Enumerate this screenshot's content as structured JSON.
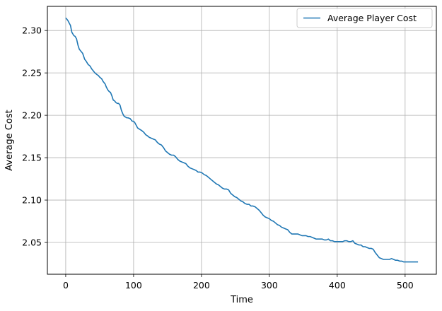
{
  "chart_data": {
    "type": "line",
    "title": "",
    "xlabel": "Time",
    "ylabel": "Average Cost",
    "xlim": [
      -27,
      546
    ],
    "ylim": [
      2.0125,
      2.3285
    ],
    "xticks": [
      0,
      100,
      200,
      300,
      400,
      500
    ],
    "xtick_labels": [
      "0",
      "100",
      "200",
      "300",
      "400",
      "500"
    ],
    "yticks": [
      2.05,
      2.1,
      2.15,
      2.2,
      2.25,
      2.3
    ],
    "ytick_labels": [
      "2.05",
      "2.10",
      "2.15",
      "2.20",
      "2.25",
      "2.30"
    ],
    "grid": true,
    "legend": {
      "placement": "top-right"
    },
    "series": [
      {
        "name": "Average Player Cost",
        "color": "#1f77b4",
        "x": [
          0,
          3,
          5,
          7,
          9,
          12,
          14,
          16,
          18,
          20,
          22,
          25,
          28,
          30,
          33,
          36,
          38,
          40,
          43,
          46,
          48,
          50,
          53,
          55,
          58,
          60,
          62,
          64,
          66,
          68,
          70,
          72,
          74,
          76,
          78,
          80,
          82,
          84,
          86,
          88,
          90,
          92,
          95,
          98,
          100,
          102,
          104,
          106,
          108,
          110,
          112,
          115,
          118,
          120,
          123,
          126,
          129,
          132,
          135,
          138,
          141,
          144,
          147,
          150,
          153,
          156,
          159,
          162,
          165,
          168,
          171,
          174,
          177,
          180,
          183,
          186,
          189,
          192,
          195,
          198,
          201,
          204,
          207,
          210,
          213,
          216,
          219,
          222,
          225,
          228,
          231,
          234,
          237,
          240,
          243,
          246,
          249,
          252,
          255,
          258,
          261,
          264,
          267,
          270,
          273,
          276,
          279,
          282,
          285,
          288,
          291,
          294,
          297,
          300,
          303,
          306,
          309,
          312,
          315,
          318,
          321,
          324,
          327,
          330,
          333,
          336,
          339,
          342,
          345,
          348,
          351,
          354,
          357,
          360,
          363,
          366,
          369,
          372,
          375,
          378,
          381,
          384,
          387,
          390,
          393,
          396,
          399,
          402,
          405,
          408,
          411,
          414,
          417,
          420,
          423,
          426,
          429,
          432,
          435,
          438,
          441,
          444,
          447,
          450,
          453,
          456,
          459,
          462,
          465,
          468,
          471,
          474,
          477,
          480,
          483,
          486,
          489,
          492,
          495,
          498,
          501,
          504,
          507,
          510,
          513,
          516,
          519
        ],
        "y": [
          2.315,
          2.312,
          2.309,
          2.306,
          2.298,
          2.294,
          2.293,
          2.29,
          2.283,
          2.278,
          2.276,
          2.273,
          2.266,
          2.264,
          2.26,
          2.258,
          2.255,
          2.253,
          2.25,
          2.248,
          2.247,
          2.245,
          2.243,
          2.24,
          2.237,
          2.233,
          2.23,
          2.228,
          2.227,
          2.223,
          2.218,
          2.217,
          2.215,
          2.214,
          2.214,
          2.212,
          2.206,
          2.202,
          2.199,
          2.198,
          2.197,
          2.197,
          2.196,
          2.193,
          2.193,
          2.191,
          2.188,
          2.185,
          2.184,
          2.183,
          2.182,
          2.18,
          2.177,
          2.176,
          2.174,
          2.173,
          2.172,
          2.171,
          2.168,
          2.166,
          2.165,
          2.162,
          2.158,
          2.156,
          2.154,
          2.153,
          2.153,
          2.151,
          2.148,
          2.146,
          2.145,
          2.144,
          2.143,
          2.14,
          2.138,
          2.137,
          2.136,
          2.135,
          2.133,
          2.133,
          2.132,
          2.13,
          2.129,
          2.127,
          2.125,
          2.123,
          2.121,
          2.119,
          2.118,
          2.116,
          2.114,
          2.113,
          2.113,
          2.112,
          2.108,
          2.106,
          2.104,
          2.103,
          2.101,
          2.099,
          2.098,
          2.096,
          2.095,
          2.095,
          2.093,
          2.093,
          2.092,
          2.09,
          2.088,
          2.085,
          2.082,
          2.08,
          2.079,
          2.078,
          2.076,
          2.075,
          2.073,
          2.071,
          2.07,
          2.068,
          2.067,
          2.066,
          2.065,
          2.062,
          2.06,
          2.06,
          2.06,
          2.06,
          2.059,
          2.058,
          2.058,
          2.058,
          2.057,
          2.057,
          2.056,
          2.055,
          2.054,
          2.054,
          2.054,
          2.054,
          2.053,
          2.053,
          2.054,
          2.052,
          2.052,
          2.051,
          2.051,
          2.051,
          2.051,
          2.051,
          2.052,
          2.052,
          2.051,
          2.051,
          2.052,
          2.049,
          2.048,
          2.047,
          2.047,
          2.045,
          2.045,
          2.044,
          2.043,
          2.043,
          2.042,
          2.038,
          2.035,
          2.032,
          2.031,
          2.03,
          2.03,
          2.03,
          2.03,
          2.031,
          2.03,
          2.029,
          2.029,
          2.028,
          2.028,
          2.027,
          2.027,
          2.027,
          2.027,
          2.027,
          2.027,
          2.027,
          2.027
        ]
      }
    ]
  }
}
